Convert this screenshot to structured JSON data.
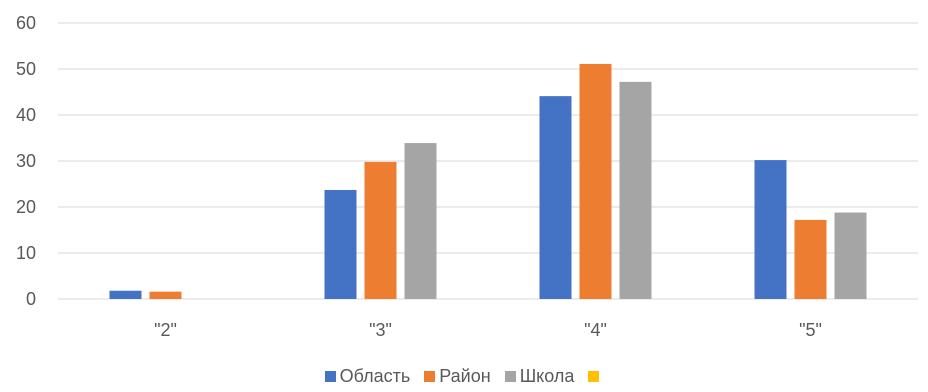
{
  "chart_data": {
    "type": "bar",
    "categories": [
      "\"2\"",
      "\"3\"",
      "\"4\"",
      "\"5\""
    ],
    "series": [
      {
        "name": "Область",
        "color": "#4472C4",
        "values": [
          1.8,
          23.7,
          44.1,
          30.2
        ]
      },
      {
        "name": "Район",
        "color": "#ED7D31",
        "values": [
          1.6,
          29.8,
          51.1,
          17.2
        ]
      },
      {
        "name": "Школа",
        "color": "#A5A5A5",
        "values": [
          0,
          33.9,
          47.2,
          18.8
        ]
      },
      {
        "name": "",
        "color": "#FFC000",
        "values": [
          0,
          0,
          0,
          0
        ]
      }
    ],
    "ylim": [
      0,
      60
    ],
    "yticks": [
      0,
      10,
      20,
      30,
      40,
      50,
      60
    ],
    "grid": true,
    "legend": "bottom"
  }
}
